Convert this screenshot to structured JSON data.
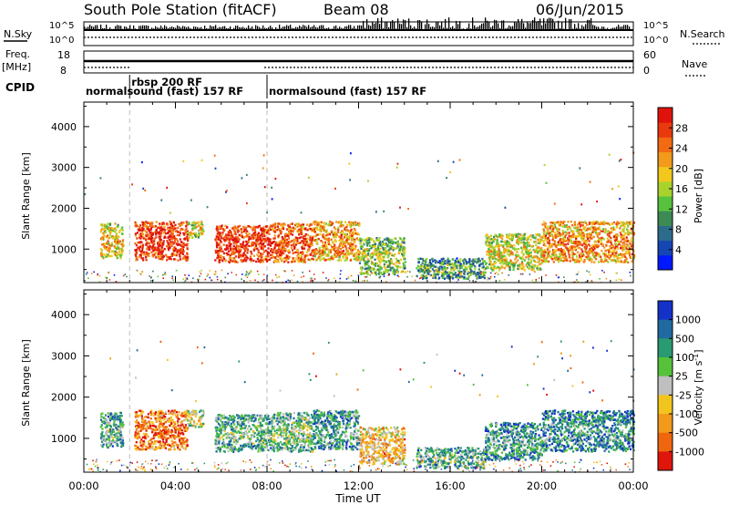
{
  "header": {
    "station": "South Pole Station (fitACF)",
    "beam": "Beam 08",
    "date": "06/Jun/2015"
  },
  "strips": {
    "nsky_label": "N.Sky",
    "nsky_top": "10^5",
    "nsky_bottom": "10^0",
    "nsearch_label": "N.Search",
    "nsearch_top": "10^5",
    "nsearch_bottom": "10^0",
    "freq_label": "Freq.",
    "freq_unit": "[MHz]",
    "freq_top": "18",
    "freq_bottom": "8",
    "nave_label": "Nave",
    "nave_top": "60",
    "nave_bottom": "0",
    "cpid_label": "CPID"
  },
  "cpid_segments": [
    {
      "start_ut": 0.0,
      "end_ut": 2.0,
      "label": "normalsound (fast) 157 RF"
    },
    {
      "start_ut": 2.0,
      "end_ut": 8.0,
      "label": "rbsp 200 RF"
    },
    {
      "start_ut": 8.0,
      "end_ut": 24.0,
      "label": "normalsound (fast) 157 RF"
    }
  ],
  "chart_data": [
    {
      "type": "heatmap",
      "name": "power",
      "ylabel": "Slant Range [km]",
      "xlabel": "",
      "xlim_ut": [
        0,
        24
      ],
      "ylim_km": [
        180,
        4600
      ],
      "yticks": [
        "1000",
        "2000",
        "3000",
        "4000"
      ],
      "colorbar": {
        "label": "Power [dB]",
        "ticks": [
          "4",
          "8",
          "12",
          "16",
          "20",
          "24",
          "28"
        ],
        "colors": [
          "#0018ff",
          "#1646b4",
          "#2d6b8c",
          "#3d8a55",
          "#56c23d",
          "#a8d32d",
          "#f2c81e",
          "#f29a1b",
          "#f26a12",
          "#e83a0e",
          "#e0130c"
        ]
      },
      "blobs": [
        {
          "t0": 0.7,
          "t1": 1.7,
          "r0": 800,
          "r1": 1650,
          "level": 0.55
        },
        {
          "t0": 2.2,
          "t1": 4.5,
          "r0": 750,
          "r1": 1700,
          "level": 0.85
        },
        {
          "t0": 4.5,
          "t1": 5.2,
          "r0": 1300,
          "r1": 1700,
          "level": 0.5
        },
        {
          "t0": 5.7,
          "t1": 8.2,
          "r0": 700,
          "r1": 1600,
          "level": 0.85
        },
        {
          "t0": 8.2,
          "t1": 10.0,
          "r0": 700,
          "r1": 1650,
          "level": 0.75
        },
        {
          "t0": 10.0,
          "t1": 12.0,
          "r0": 750,
          "r1": 1700,
          "level": 0.65
        },
        {
          "t0": 12.0,
          "t1": 14.0,
          "r0": 400,
          "r1": 1300,
          "level": 0.4
        },
        {
          "t0": 14.5,
          "t1": 17.5,
          "r0": 300,
          "r1": 800,
          "level": 0.3
        },
        {
          "t0": 17.5,
          "t1": 20.0,
          "r0": 500,
          "r1": 1400,
          "level": 0.5
        },
        {
          "t0": 20.0,
          "t1": 24.0,
          "r0": 700,
          "r1": 1700,
          "level": 0.65
        }
      ]
    },
    {
      "type": "heatmap",
      "name": "velocity",
      "ylabel": "Slant Range [km]",
      "xlabel": "Time UT",
      "xlim_ut": [
        0,
        24
      ],
      "ylim_km": [
        180,
        4600
      ],
      "yticks": [
        "1000",
        "2000",
        "3000",
        "4000"
      ],
      "xticks": [
        "00:00",
        "04:00",
        "08:00",
        "12:00",
        "16:00",
        "20:00",
        "00:00"
      ],
      "colorbar": {
        "label": "Velocity [m s^-1]",
        "ticks": [
          "1000",
          "500",
          "100",
          "25",
          "-25",
          "-100",
          "-500",
          "-1000"
        ],
        "colors": [
          "#1432c8",
          "#1f6aa0",
          "#2a9a72",
          "#55c23a",
          "#bfbfbf",
          "#f2c41e",
          "#f29a1a",
          "#f0660f",
          "#e0150c"
        ]
      },
      "blobs": [
        {
          "t0": 0.7,
          "t1": 1.7,
          "r0": 800,
          "r1": 1650,
          "level": 0.3
        },
        {
          "t0": 2.2,
          "t1": 4.5,
          "r0": 750,
          "r1": 1700,
          "level": 0.75
        },
        {
          "t0": 4.5,
          "t1": 5.2,
          "r0": 1300,
          "r1": 1700,
          "level": 0.45
        },
        {
          "t0": 5.7,
          "t1": 8.2,
          "r0": 700,
          "r1": 1600,
          "level": 0.3
        },
        {
          "t0": 8.2,
          "t1": 10.0,
          "r0": 700,
          "r1": 1650,
          "level": 0.35
        },
        {
          "t0": 10.0,
          "t1": 12.0,
          "r0": 750,
          "r1": 1700,
          "level": 0.25
        },
        {
          "t0": 12.0,
          "t1": 14.0,
          "r0": 400,
          "r1": 1300,
          "level": 0.6
        },
        {
          "t0": 14.5,
          "t1": 17.5,
          "r0": 300,
          "r1": 800,
          "level": 0.3
        },
        {
          "t0": 17.5,
          "t1": 20.0,
          "r0": 500,
          "r1": 1400,
          "level": 0.25
        },
        {
          "t0": 20.0,
          "t1": 24.0,
          "r0": 700,
          "r1": 1700,
          "level": 0.2
        }
      ]
    }
  ]
}
